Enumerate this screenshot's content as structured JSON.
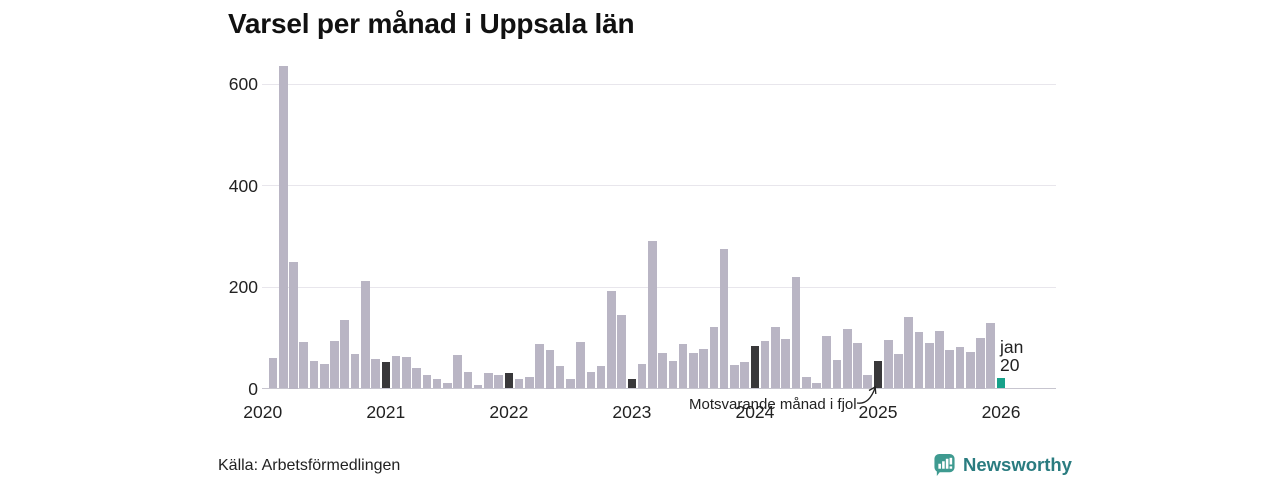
{
  "title": "Varsel per månad i Uppsala län",
  "source_label": "Källa: Arbetsförmedlingen",
  "annotation": {
    "text": "Motsvarande månad i fjol"
  },
  "latest_label": {
    "line1": "jan",
    "line2": "20"
  },
  "branding": {
    "name": "Newsworthy"
  },
  "colors": {
    "bar_default": "#b9b5c4",
    "bar_highlight": "#39383a",
    "bar_latest": "#17a18a",
    "grid": "#e8e6ec",
    "axis_line": "#c7c5cf",
    "text": "#222222",
    "brand_badge": "#3e9a90",
    "brand_text": "#2a7c80"
  },
  "chart_data": {
    "type": "bar",
    "title": "Varsel per månad i Uppsala län",
    "xlabel": "",
    "ylabel": "",
    "y_ticks": [
      0,
      200,
      400,
      600
    ],
    "ylim": [
      0,
      650
    ],
    "x_tick_labels": [
      "2020",
      "2021",
      "2022",
      "2023",
      "2024",
      "2025",
      "2026"
    ],
    "start_month": "2020-02",
    "end_month": "2026-01",
    "highlight_rule": "January bars are dark; the latest bar (jan 2026, value 20) is teal",
    "grid": "horizontal",
    "values": [
      60,
      635,
      250,
      92,
      54,
      48,
      94,
      135,
      68,
      212,
      58,
      52,
      64,
      62,
      40,
      26,
      18,
      10,
      66,
      32,
      6,
      30,
      26,
      30,
      18,
      22,
      88,
      75,
      45,
      18,
      92,
      32,
      44,
      192,
      145,
      18,
      48,
      290,
      70,
      55,
      87,
      70,
      78,
      122,
      275,
      46,
      52,
      84,
      94,
      122,
      98,
      220,
      22,
      10,
      104,
      56,
      118,
      90,
      26,
      55,
      95,
      68,
      140,
      112,
      90,
      114,
      75,
      82,
      72,
      100,
      130,
      20
    ]
  }
}
